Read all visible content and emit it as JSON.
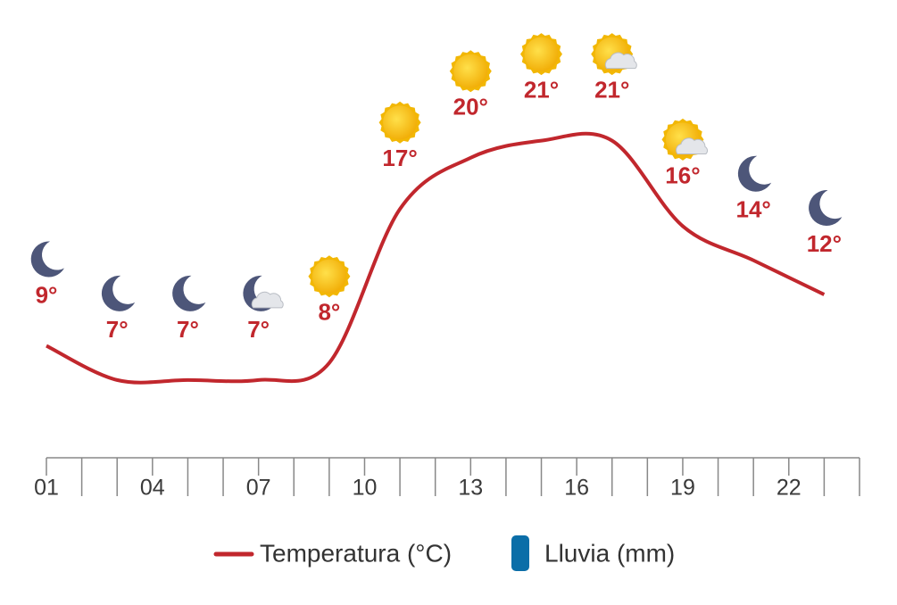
{
  "chart_data": {
    "type": "line",
    "x": [
      1,
      3,
      5,
      7,
      9,
      11,
      13,
      15,
      17,
      19,
      21,
      23
    ],
    "series": [
      {
        "name": "Temperatura (°C)",
        "color": "#c1272d",
        "values": [
          9,
          7,
          7,
          7,
          8,
          17,
          20,
          21,
          21,
          16,
          14,
          12
        ],
        "value_labels": [
          "9°",
          "7°",
          "7°",
          "7°",
          "8°",
          "17°",
          "20°",
          "21°",
          "21°",
          "16°",
          "14°",
          "12°"
        ],
        "icons": [
          "moon",
          "moon",
          "moon",
          "moon-cloud",
          "sun",
          "sun",
          "sun",
          "sun",
          "sun-cloud",
          "sun-cloud",
          "moon",
          "moon"
        ]
      },
      {
        "name": "Lluvia (mm)",
        "color": "#0b6ea8"
      }
    ],
    "xlim": [
      1,
      24
    ],
    "ylim": [
      0,
      25
    ],
    "xticks": [
      {
        "value": 1,
        "label": "01"
      },
      {
        "value": 4,
        "label": "04"
      },
      {
        "value": 7,
        "label": "07"
      },
      {
        "value": 10,
        "label": "10"
      },
      {
        "value": 13,
        "label": "13"
      },
      {
        "value": 16,
        "label": "16"
      },
      {
        "value": 19,
        "label": "19"
      },
      {
        "value": 22,
        "label": "22"
      }
    ],
    "xticks_minor": [
      2,
      3,
      5,
      6,
      8,
      9,
      11,
      12,
      14,
      15,
      17,
      18,
      20,
      21,
      23,
      24
    ]
  }
}
